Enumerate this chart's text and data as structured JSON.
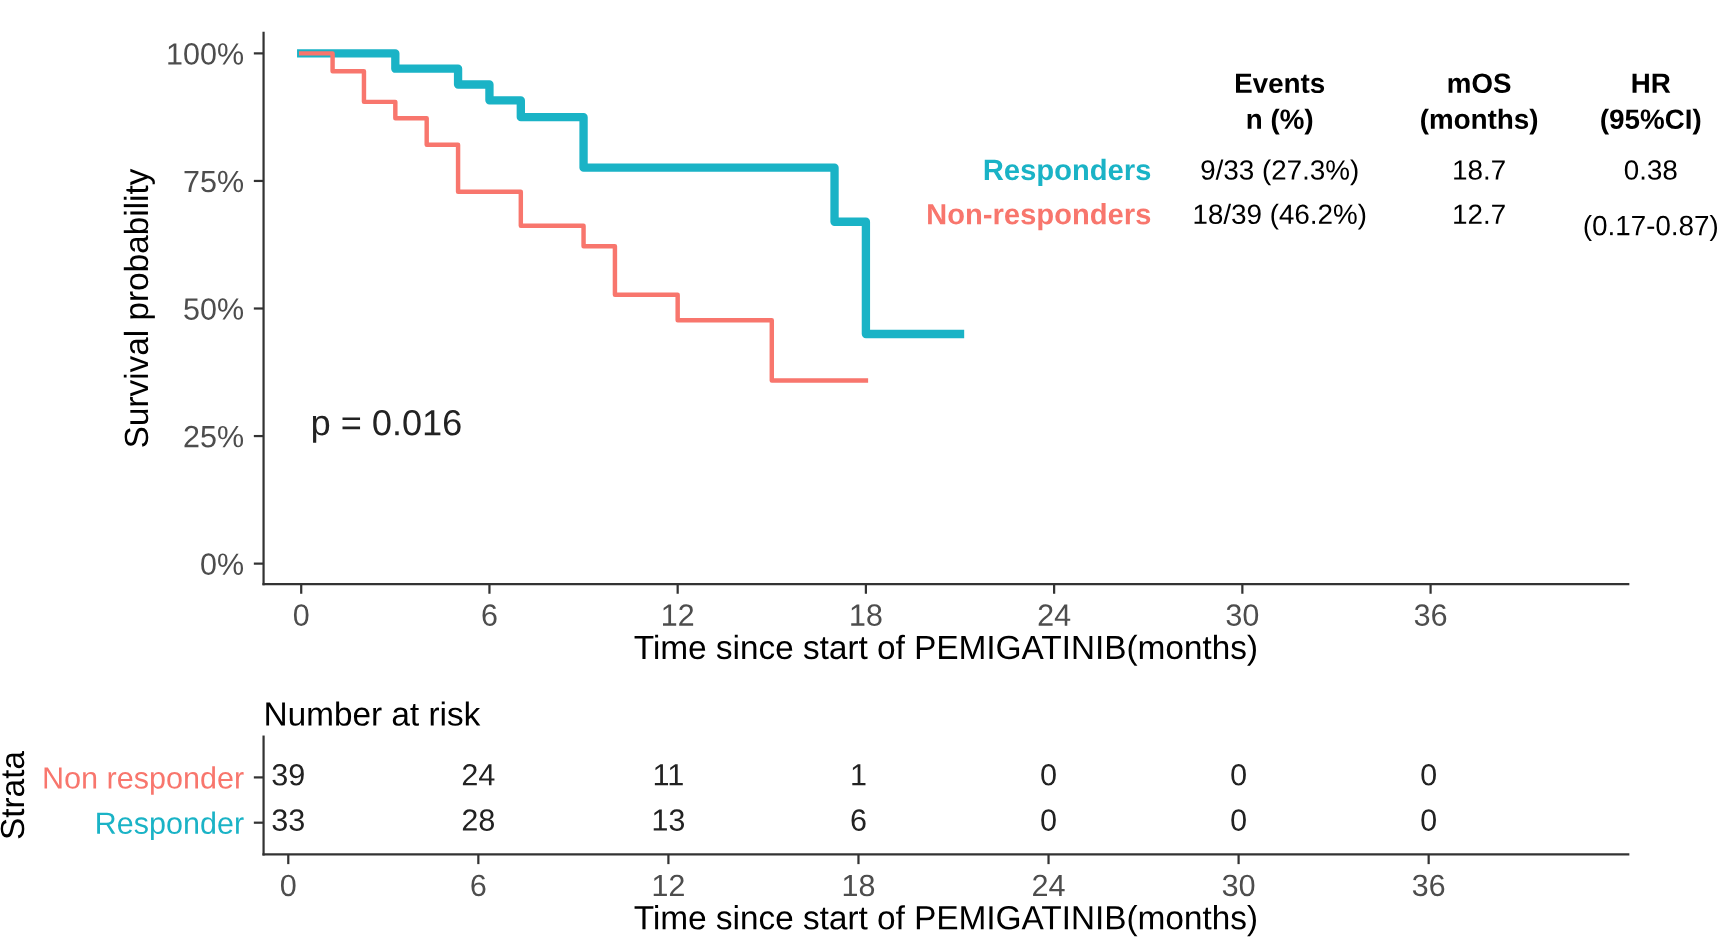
{
  "chart_data": [
    {
      "type": "step",
      "xlabel": "Time since start of PEMIGATINIB(months)",
      "ylabel": "Survival probability",
      "series": [
        {
          "name": "Responders",
          "color": "#1ab3c6",
          "x": [
            0,
            3,
            5,
            6,
            7,
            9,
            17,
            18,
            21
          ],
          "values": [
            100,
            97,
            93.9,
            90.8,
            87.5,
            77.6,
            67,
            45,
            45
          ]
        },
        {
          "name": "Non-responders",
          "color": "#f8766d",
          "x": [
            0,
            1,
            2,
            3,
            4,
            5,
            7,
            9,
            10,
            12,
            15,
            18
          ],
          "values": [
            100,
            96.5,
            90.5,
            87.3,
            82.1,
            72.9,
            66.2,
            62.2,
            52.7,
            47.7,
            35.9,
            35.9
          ]
        }
      ],
      "xlim": [
        -1.2,
        42.3
      ],
      "xticks": [
        0,
        6,
        12,
        18,
        24,
        30,
        36
      ],
      "ylim": [
        -4,
        104
      ],
      "yticks": [
        {
          "value": 0,
          "label": "0%"
        },
        {
          "value": 25,
          "label": "25%"
        },
        {
          "value": 50,
          "label": "50%"
        },
        {
          "value": 75,
          "label": "75%"
        },
        {
          "value": 100,
          "label": "100%"
        }
      ],
      "grid": false,
      "line_style": "solid",
      "annotations": [
        "Events\nn (%)",
        "mOS\n(months)",
        "HR\n(95%CI)",
        "9/33 (27.3%)",
        "18.7",
        "0.38",
        "18/39 (46.2%)",
        "12.7",
        "(0.17-0.87)",
        "p = 0.016"
      ]
    },
    {
      "type": "heatmap",
      "title": "Number at risk",
      "xlabel": "Time since start of PEMIGATINIB(months)",
      "ylabel": "Strata",
      "categories": [
        "0",
        "6",
        "12",
        "18",
        "24",
        "30",
        "36"
      ],
      "y_categories": [
        "Non responder",
        "Responder"
      ],
      "colors": [
        "#f8766d",
        "#1ab3c6"
      ],
      "cells": [
        [
          39,
          24,
          11,
          1,
          0,
          0,
          0
        ],
        [
          33,
          28,
          13,
          6,
          0,
          0,
          0
        ]
      ],
      "data_labels": true
    }
  ]
}
